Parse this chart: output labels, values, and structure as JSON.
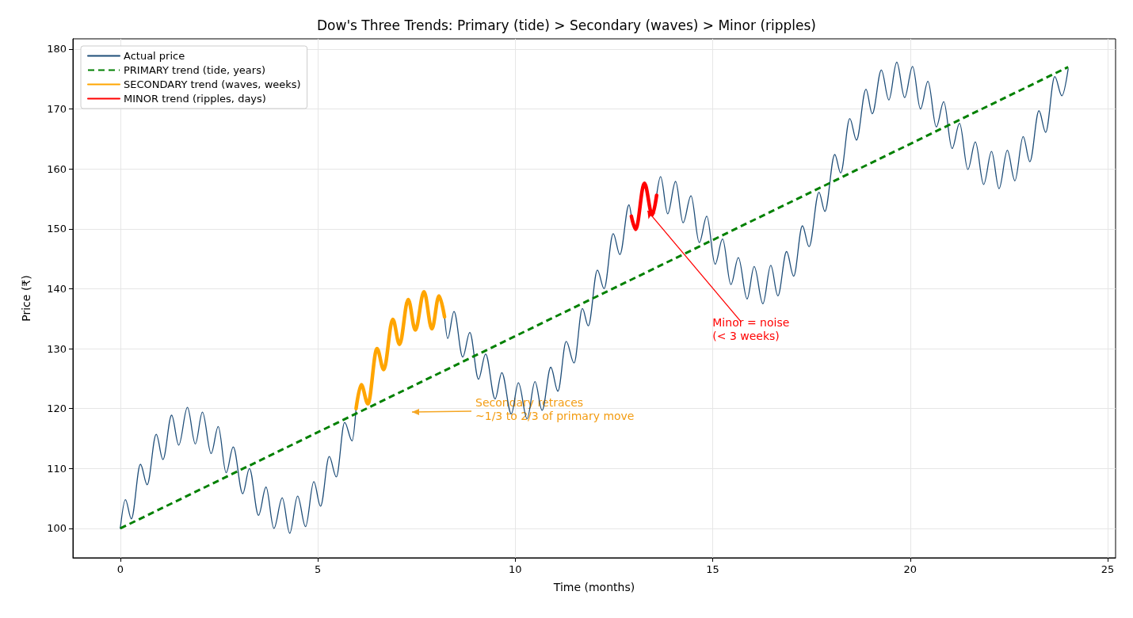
{
  "chart_data": {
    "type": "line",
    "title": "Dow's Three Trends: Primary (tide) > Secondary (waves) > Minor (ripples)",
    "xlabel": "Time (months)",
    "ylabel": "Price (₹)",
    "xlim": [
      -1.2,
      25.2
    ],
    "xticks": [
      0,
      5,
      10,
      15,
      20,
      25
    ],
    "ylim": [
      95.1,
      181.7
    ],
    "yticks": [
      100,
      110,
      120,
      130,
      140,
      150,
      160,
      170,
      180
    ],
    "grid": true,
    "legend": "top left",
    "marker": "none",
    "series": [
      {
        "name": "Actual price",
        "color": "#1f4e79",
        "line_style": "solid",
        "x": [
          0,
          0.13,
          0.28,
          0.51,
          0.68,
          0.91,
          1.08,
          1.3,
          1.48,
          1.7,
          1.9,
          2.08,
          2.3,
          2.48,
          2.68,
          2.86,
          3.1,
          3.27,
          3.5,
          3.69,
          3.89,
          4.1,
          4.29,
          4.49,
          4.69,
          4.9,
          5.07,
          5.29,
          5.47,
          5.68,
          5.87,
          5.97,
          7,
          8.21,
          8.29,
          8.45,
          8.67,
          8.85,
          9.07,
          9.25,
          9.49,
          9.66,
          9.9,
          10.08,
          10.3,
          10.5,
          10.68,
          10.9,
          11.08,
          11.29,
          11.49,
          11.7,
          11.85,
          12.08,
          12.25,
          12.48,
          12.65,
          12.88,
          12.94,
          13.2,
          13.58,
          13.68,
          13.86,
          14.06,
          14.25,
          14.45,
          14.66,
          14.85,
          15.06,
          15.25,
          15.46,
          15.65,
          15.87,
          16.05,
          16.27,
          16.47,
          16.65,
          16.87,
          17.05,
          17.27,
          17.44,
          17.69,
          17.84,
          18.09,
          18.24,
          18.47,
          18.64,
          18.88,
          19.04,
          19.27,
          19.46,
          19.66,
          19.86,
          20.06,
          20.26,
          20.45,
          20.66,
          20.85,
          21.06,
          21.25,
          21.46,
          21.65,
          21.86,
          22.06,
          22.25,
          22.46,
          22.65,
          22.86,
          23.03,
          23.26,
          23.43,
          23.66,
          23.84,
          24
        ],
        "values": [
          100,
          104.8,
          101.6,
          110.7,
          107.3,
          115.7,
          111.5,
          118.9,
          113.9,
          120.2,
          114.1,
          119.4,
          112.5,
          117,
          109.3,
          113.6,
          105.8,
          110,
          102.2,
          106.9,
          100,
          105.1,
          99.2,
          105.4,
          100.3,
          107.8,
          103.7,
          112,
          108.6,
          117.7,
          114.6,
          120,
          null,
          135.3,
          131.7,
          136.2,
          128.6,
          132.7,
          124.9,
          129.1,
          121.6,
          126,
          119.1,
          124.3,
          118.3,
          124.5,
          119.7,
          126.9,
          122.9,
          131.2,
          127.6,
          136.7,
          133.8,
          143.1,
          140,
          149.2,
          145.7,
          154,
          152.1,
          null,
          155.6,
          158.7,
          152.5,
          157.9,
          151,
          155.5,
          147.7,
          152.1,
          144.1,
          148.3,
          140.7,
          145.2,
          138.3,
          143.7,
          137.5,
          143.9,
          138.8,
          146.2,
          142.1,
          150.5,
          147,
          156.1,
          152.9,
          162.4,
          159.3,
          168.4,
          164.8,
          173.3,
          169.2,
          176.5,
          171.5,
          177.8,
          171.9,
          177.1,
          170,
          174.6,
          167,
          171.2,
          163.4,
          167.6,
          159.9,
          164.5,
          157.4,
          162.9,
          156.7,
          163.1,
          158,
          165.4,
          161.2,
          169.7,
          166.1,
          175.4,
          172.2,
          176.7
        ]
      },
      {
        "name": "PRIMARY trend (tide, years)",
        "color": "#008000",
        "line_style": "dashed",
        "x": [
          0,
          24
        ],
        "values": [
          100,
          177
        ]
      },
      {
        "name": "SECONDARY trend (waves, weeks)",
        "color": "#ffa500",
        "line_style": "solid",
        "x": [
          5.97,
          6.1,
          6.27,
          6.5,
          6.67,
          6.9,
          7.07,
          7.29,
          7.47,
          7.69,
          7.89,
          8.07,
          8.21
        ],
        "values": [
          120,
          124,
          120.8,
          130,
          126.5,
          134.9,
          130.7,
          138.2,
          133.1,
          139.5,
          133.3,
          138.8,
          135.3
        ]
      },
      {
        "name": "MINOR trend (ripples, days)",
        "color": "#ff0000",
        "line_style": "solid",
        "x": [
          12.94,
          13.05,
          13.27,
          13.47,
          13.58
        ],
        "values": [
          152.1,
          149.9,
          157.6,
          152.3,
          155.6
        ]
      }
    ],
    "annotations": [
      "Secondary retraces\n~1/3 to 2/3 of primary move",
      {
        "text": "Minor = noise\n(< 3 weeks)",
        "x": 13.35,
        "y": 153
      }
    ]
  }
}
